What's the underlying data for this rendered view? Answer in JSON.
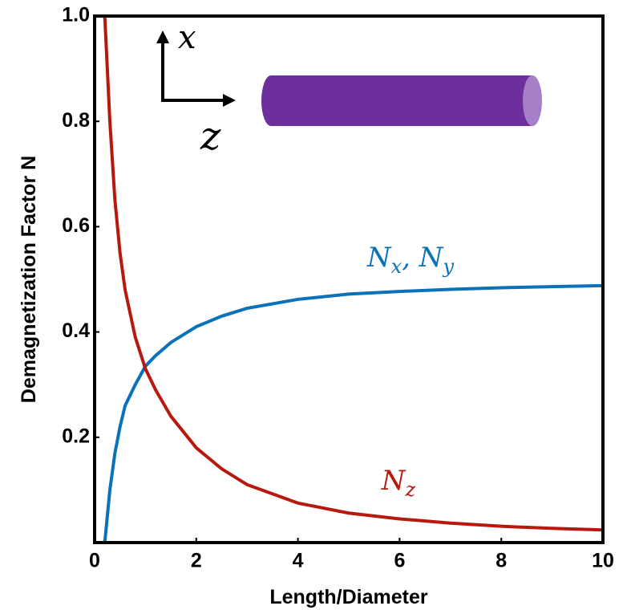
{
  "chart_data": {
    "type": "line",
    "xlabel": "Length/Diameter",
    "ylabel": "Demagnetization Factor N",
    "x": [
      0.2,
      0.3,
      0.4,
      0.5,
      0.6,
      0.8,
      1,
      1.2,
      1.5,
      2,
      2.5,
      3,
      4,
      5,
      6,
      7,
      8,
      9,
      10
    ],
    "series": [
      {
        "name": "N_x, N_y",
        "color": "#0a72b8",
        "values": [
          0,
          0.1,
          0.17,
          0.22,
          0.26,
          0.3,
          0.335,
          0.355,
          0.38,
          0.41,
          0.43,
          0.445,
          0.462,
          0.472,
          0.477,
          0.481,
          0.484,
          0.486,
          0.488
        ]
      },
      {
        "name": "N_z",
        "color": "#b8190e",
        "values": [
          1.0,
          0.8,
          0.65,
          0.55,
          0.48,
          0.39,
          0.33,
          0.29,
          0.24,
          0.18,
          0.14,
          0.11,
          0.075,
          0.056,
          0.045,
          0.037,
          0.031,
          0.027,
          0.024
        ]
      }
    ],
    "xlim": [
      0,
      10
    ],
    "ylim": [
      0,
      1
    ],
    "xticks": [
      0,
      2,
      4,
      6,
      8,
      10
    ],
    "yticks": [
      0.2,
      0.4,
      0.6,
      0.8,
      {
        "value": 1,
        "label": "1.0"
      }
    ],
    "inset_axes": [
      "x",
      "z"
    ]
  }
}
